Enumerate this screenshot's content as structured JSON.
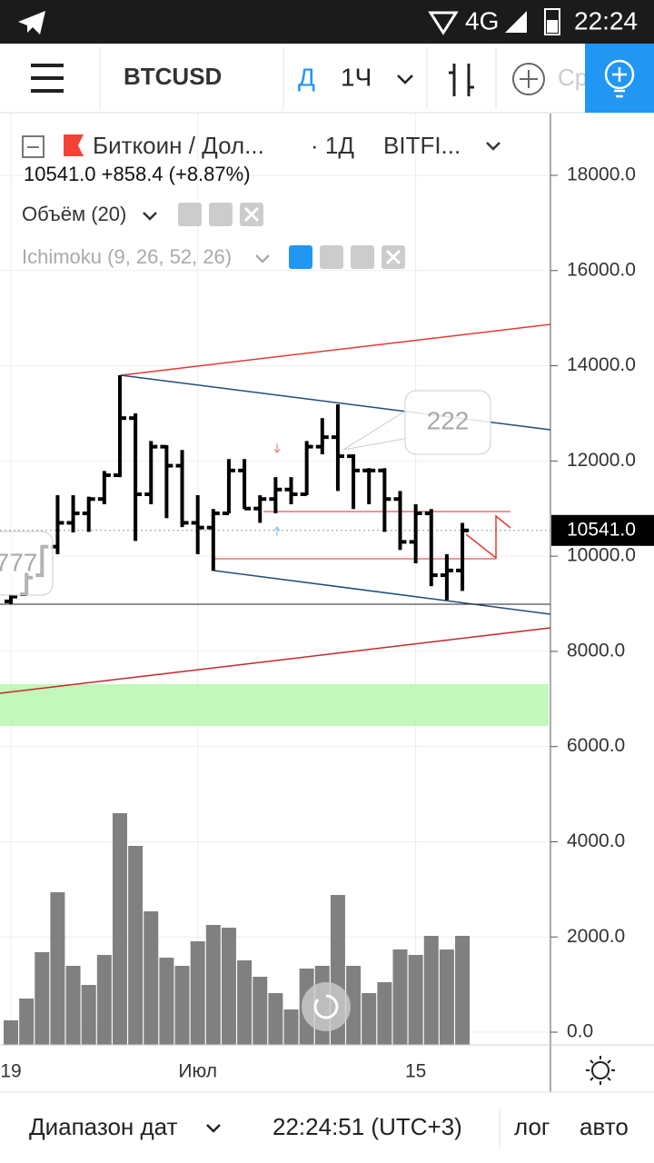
{
  "status_bar": {
    "network": "4G",
    "time": "22:24"
  },
  "toolbar": {
    "symbol": "BTCUSD",
    "chart_style": "Д",
    "interval": "1Ч",
    "search_hint": "Ср"
  },
  "legend": {
    "name": "Биткоин / Дол...",
    "interval": "· 1Д",
    "exchange": "BITFI...",
    "quote": "10541.0  +858.4 (+8.87%)",
    "volume_study": "Объём (20)",
    "ichimoku_study": "Ichimoku (9, 26, 52, 26)"
  },
  "annotations": {
    "callout": "222",
    "left_label": "777"
  },
  "chart_data": {
    "type": "ohlc",
    "categories": [
      "19",
      null,
      null,
      null,
      null,
      null,
      null,
      null,
      null,
      null,
      null,
      null,
      "Июл",
      null,
      null,
      null,
      null,
      null,
      null,
      null,
      null,
      null,
      null,
      null,
      null,
      null,
      "15",
      null,
      null,
      null
    ],
    "open": [
      9050,
      9200,
      9600,
      10200,
      10700,
      10900,
      11200,
      11700,
      12900,
      11300,
      12300,
      11900,
      10700,
      10600,
      10900,
      11800,
      11000,
      11200,
      11400,
      11300,
      12300,
      12500,
      12100,
      11800,
      11800,
      11200,
      10300,
      10900,
      9600,
      9700
    ],
    "high": [
      9200,
      9650,
      10230,
      11280,
      11280,
      11250,
      11790,
      13800,
      13000,
      12420,
      12330,
      12230,
      11280,
      10990,
      12040,
      12040,
      11280,
      11660,
      11660,
      12420,
      12900,
      13190,
      12140,
      11850,
      11850,
      11370,
      11090,
      10990,
      10040,
      10700
    ],
    "low": [
      9000,
      9180,
      9560,
      10040,
      10500,
      10510,
      11090,
      11660,
      10320,
      11090,
      10800,
      10610,
      10040,
      9690,
      10900,
      10990,
      10700,
      10900,
      11090,
      11280,
      12140,
      11370,
      10990,
      11090,
      10510,
      10130,
      9850,
      9370,
      9080,
      9270
    ],
    "close": [
      9150,
      9550,
      10200,
      10700,
      10900,
      11200,
      11700,
      12900,
      11300,
      12300,
      11900,
      10700,
      10600,
      10900,
      11800,
      11000,
      11200,
      11400,
      11300,
      12300,
      12500,
      12100,
      11800,
      11800,
      11200,
      10300,
      10900,
      9600,
      9700,
      10541
    ],
    "color": "#000000",
    "volume": [
      9,
      17,
      34,
      56,
      29,
      22,
      33,
      85,
      73,
      49,
      32,
      29,
      38,
      44,
      43,
      31,
      25,
      19,
      13,
      28,
      29,
      55,
      29,
      19,
      23,
      35,
      33,
      40,
      35,
      40
    ],
    "volume_color": "#808080",
    "volume_ylim": [
      0,
      100
    ],
    "last_price": {
      "value": 10541,
      "label": "10541.0"
    },
    "ylim": [
      -267,
      19298
    ],
    "yticks": [
      {
        "value": 0,
        "label": "0.0"
      },
      {
        "value": 2000,
        "label": "2000.0"
      },
      {
        "value": 4000,
        "label": "4000.0"
      },
      {
        "value": 6000,
        "label": "6000.0"
      },
      {
        "value": 8000,
        "label": "8000.0"
      },
      {
        "value": 10000,
        "label": "10000.0"
      },
      {
        "value": 12000,
        "label": "12000.0"
      },
      {
        "value": 14000,
        "label": "14000.0"
      },
      {
        "value": 16000,
        "label": "16000.0"
      },
      {
        "value": 18000,
        "label": "18000.0"
      }
    ],
    "grid": true
  },
  "footer": {
    "date_range": "Диапазон дат",
    "clock": "22:24:51 (UTC+3)",
    "log": "лог",
    "auto": "авто"
  }
}
